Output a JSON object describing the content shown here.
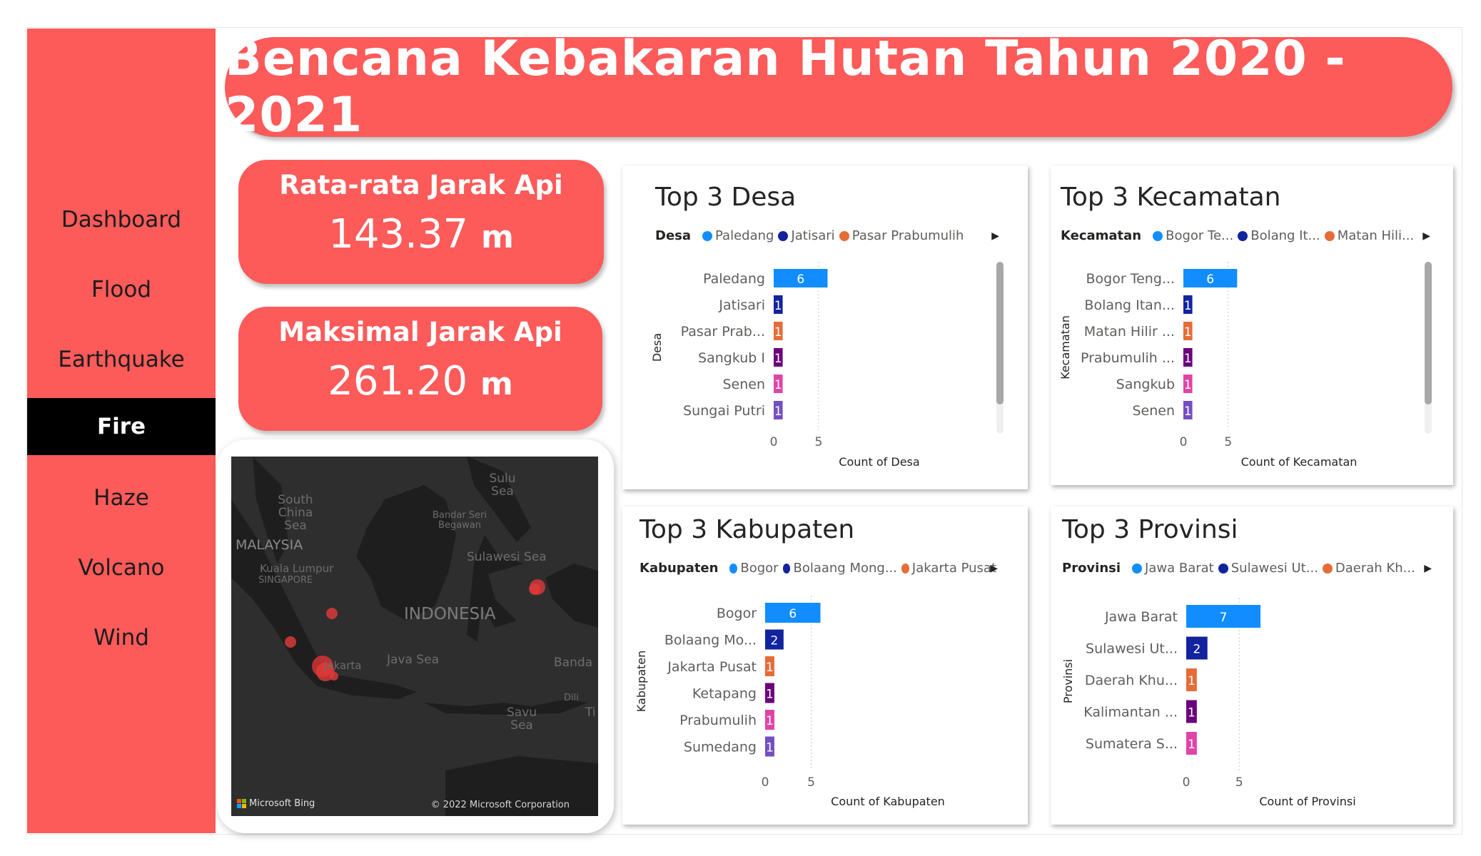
{
  "header": {
    "title": "Bencana Kebakaran Hutan Tahun 2020 - 2021"
  },
  "nav": {
    "items": [
      {
        "label": "Dashboard",
        "active": false
      },
      {
        "label": "Flood",
        "active": false
      },
      {
        "label": "Earthquake",
        "active": false
      },
      {
        "label": "Fire",
        "active": true
      },
      {
        "label": "Haze",
        "active": false
      },
      {
        "label": "Volcano",
        "active": false
      },
      {
        "label": "Wind",
        "active": false
      }
    ]
  },
  "kpis": {
    "avg": {
      "label": "Rata-rata Jarak Api",
      "value": "143.37",
      "unit": "m"
    },
    "max": {
      "label": "Maksimal Jarak Api",
      "value": "261.20",
      "unit": "m"
    }
  },
  "map": {
    "labels": {
      "sulu_sea": "Sulu Sea",
      "south_china_sea": "South China Sea",
      "bandar_seri_begawan": "Bandar Seri Begawan",
      "malaysia": "MALAYSIA",
      "sulawesi_sea": "Sulawesi Sea",
      "kuala_lumpur": "Kuala Lumpur",
      "singapore": "SINGAPORE",
      "indonesia": "INDONESIA",
      "jakarta": "Jakarta",
      "java_sea": "Java Sea",
      "banda": "Banda",
      "dili": "Dili",
      "savu_sea": "Savu Sea",
      "ti": "Ti"
    },
    "attribution": "Microsoft Bing",
    "copyright": "© 2022 Microsoft Corporation"
  },
  "colors": {
    "primary": "#fd5a5a",
    "series": [
      "#118dff",
      "#12239e",
      "#e66c37",
      "#6b007b",
      "#e044a7",
      "#744ec2"
    ]
  },
  "chart_data": [
    {
      "id": "desa",
      "type": "bar",
      "title": "Top 3 Desa",
      "legend_title": "Desa",
      "legend": [
        "Paledang",
        "Jatisari",
        "Pasar Prabumulih"
      ],
      "categories": [
        "Paledang",
        "Jatisari",
        "Pasar Prab...",
        "Sangkub I",
        "Senen",
        "Sungai Putri"
      ],
      "values": [
        6,
        1,
        1,
        1,
        1,
        1
      ],
      "ylabel": "Desa",
      "xlabel": "Count of Desa",
      "xlim": [
        0,
        6
      ],
      "ticks": [
        0,
        5
      ]
    },
    {
      "id": "kecamatan",
      "type": "bar",
      "title": "Top 3 Kecamatan",
      "legend_title": "Kecamatan",
      "legend": [
        "Bogor Te...",
        "Bolang It...",
        "Matan Hili..."
      ],
      "categories": [
        "Bogor Teng...",
        "Bolang Itan...",
        "Matan Hilir ...",
        "Prabumulih ...",
        "Sangkub",
        "Senen"
      ],
      "values": [
        6,
        1,
        1,
        1,
        1,
        1
      ],
      "ylabel": "Kecamatan",
      "xlabel": "Count of Kecamatan",
      "xlim": [
        0,
        6
      ],
      "ticks": [
        0,
        5
      ]
    },
    {
      "id": "kabupaten",
      "type": "bar",
      "title": "Top 3 Kabupaten",
      "legend_title": "Kabupaten",
      "legend": [
        "Bogor",
        "Bolaang Mong...",
        "Jakarta Pusat"
      ],
      "categories": [
        "Bogor",
        "Bolaang Mo...",
        "Jakarta Pusat",
        "Ketapang",
        "Prabumulih",
        "Sumedang"
      ],
      "values": [
        6,
        2,
        1,
        1,
        1,
        1
      ],
      "ylabel": "Kabupaten",
      "xlabel": "Count of Kabupaten",
      "xlim": [
        0,
        6
      ],
      "ticks": [
        0,
        5
      ]
    },
    {
      "id": "provinsi",
      "type": "bar",
      "title": "Top 3 Provinsi",
      "legend_title": "Provinsi",
      "legend": [
        "Jawa Barat",
        "Sulawesi Ut...",
        "Daerah Kh..."
      ],
      "categories": [
        "Jawa Barat",
        "Sulawesi Ut...",
        "Daerah Khu...",
        "Kalimantan ...",
        "Sumatera S..."
      ],
      "values": [
        7,
        2,
        1,
        1,
        1
      ],
      "ylabel": "Provinsi",
      "xlabel": "Count of Provinsi",
      "xlim": [
        0,
        7
      ],
      "ticks": [
        0,
        5
      ]
    }
  ]
}
